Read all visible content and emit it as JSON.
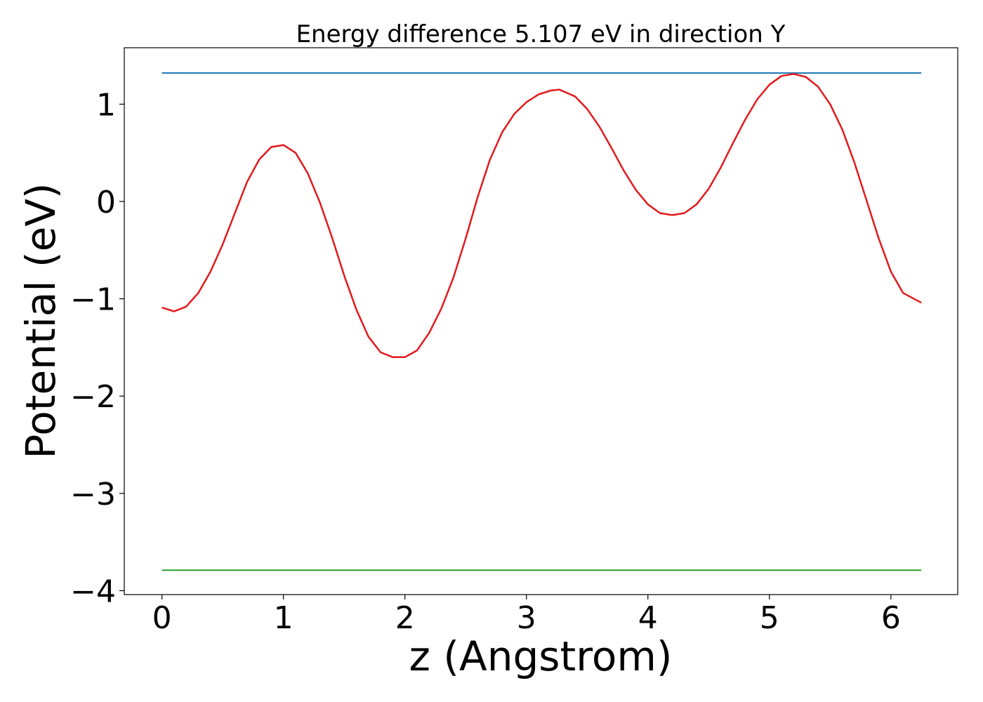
{
  "chart_data": {
    "type": "line",
    "title": "Energy difference 5.107 eV in direction Y",
    "xlabel": "z (Angstrom)",
    "ylabel": "Potential (eV)",
    "xlim": [
      -0.31,
      6.55
    ],
    "ylim": [
      -4.04,
      1.58
    ],
    "xticks": [
      0,
      1,
      2,
      3,
      4,
      5,
      6
    ],
    "xtick_labels": [
      "0",
      "1",
      "2",
      "3",
      "4",
      "5",
      "6"
    ],
    "yticks": [
      -4,
      -3,
      -2,
      -1,
      0,
      1
    ],
    "ytick_labels": [
      "−4",
      "−3",
      "−2",
      "−1",
      "0",
      "1"
    ],
    "grid": false,
    "series": [
      {
        "color": "#1f77b4",
        "x": [
          0,
          6.25
        ],
        "y": [
          1.32,
          1.32
        ]
      },
      {
        "color": "#2ca02c",
        "x": [
          0,
          6.25
        ],
        "y": [
          -3.79,
          -3.79
        ]
      },
      {
        "color": "#e31a1c",
        "x": [
          0,
          0.1,
          0.2,
          0.3,
          0.4,
          0.5,
          0.6,
          0.7,
          0.8,
          0.9,
          1.0,
          1.1,
          1.2,
          1.3,
          1.4,
          1.5,
          1.6,
          1.7,
          1.8,
          1.9,
          2.0,
          2.1,
          2.2,
          2.3,
          2.4,
          2.5,
          2.6,
          2.7,
          2.8,
          2.9,
          3.0,
          3.1,
          3.2,
          3.27,
          3.4,
          3.5,
          3.6,
          3.7,
          3.8,
          3.9,
          4.0,
          4.1,
          4.2,
          4.3,
          4.4,
          4.5,
          4.6,
          4.7,
          4.8,
          4.9,
          5.0,
          5.1,
          5.2,
          5.3,
          5.4,
          5.5,
          5.6,
          5.7,
          5.8,
          5.9,
          6.0,
          6.1,
          6.25
        ],
        "y": [
          -1.09,
          -1.13,
          -1.08,
          -0.94,
          -0.72,
          -0.44,
          -0.12,
          0.2,
          0.43,
          0.56,
          0.58,
          0.5,
          0.29,
          -0.01,
          -0.37,
          -0.76,
          -1.11,
          -1.39,
          -1.55,
          -1.6,
          -1.6,
          -1.53,
          -1.35,
          -1.1,
          -0.78,
          -0.38,
          0.05,
          0.43,
          0.71,
          0.9,
          1.02,
          1.1,
          1.14,
          1.15,
          1.08,
          0.95,
          0.77,
          0.55,
          0.32,
          0.12,
          -0.03,
          -0.12,
          -0.14,
          -0.12,
          -0.03,
          0.13,
          0.35,
          0.6,
          0.84,
          1.05,
          1.2,
          1.29,
          1.31,
          1.28,
          1.18,
          1.0,
          0.74,
          0.4,
          0.01,
          -0.38,
          -0.72,
          -0.94,
          -1.04
        ]
      }
    ]
  }
}
